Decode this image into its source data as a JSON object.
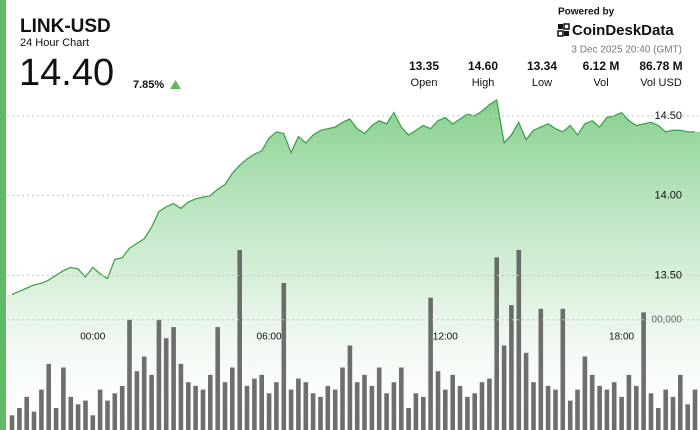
{
  "header": {
    "title": "LINK-USD",
    "subtitle": "24 Hour Chart",
    "price": "14.40",
    "change": "7.85%",
    "powered_by": "Powered by",
    "brand": "CoinDeskData",
    "timestamp": "3 Dec 2025 20:40 (GMT)"
  },
  "stats": [
    {
      "value": "13.35",
      "label": "Open"
    },
    {
      "value": "14.60",
      "label": "High"
    },
    {
      "value": "13.34",
      "label": "Low"
    },
    {
      "value": "6.12 M",
      "label": "Vol"
    },
    {
      "value": "86.78 M",
      "label": "Vol USD"
    }
  ],
  "chart_data": {
    "type": "line",
    "x": [
      -2.75,
      -2.5,
      -2.25,
      -2,
      -1.75,
      -1.5,
      -1.25,
      -1,
      -0.75,
      -0.5,
      -0.25,
      0,
      0.25,
      0.5,
      0.75,
      1,
      1.25,
      1.5,
      1.75,
      2,
      2.25,
      2.5,
      2.75,
      3,
      3.25,
      3.5,
      3.75,
      4,
      4.25,
      4.5,
      4.75,
      5,
      5.25,
      5.5,
      5.75,
      6,
      6.25,
      6.5,
      6.75,
      7,
      7.25,
      7.5,
      7.75,
      8,
      8.25,
      8.5,
      8.75,
      9,
      9.25,
      9.5,
      9.75,
      10,
      10.25,
      10.5,
      10.75,
      11,
      11.25,
      11.5,
      11.75,
      12,
      12.25,
      12.5,
      12.75,
      13,
      13.25,
      13.5,
      13.75,
      14,
      14.25,
      14.5,
      14.75,
      15,
      15.25,
      15.5,
      15.75,
      16,
      16.25,
      16.5,
      16.75,
      17,
      17.25,
      17.5,
      17.75,
      18,
      18.25,
      18.5,
      18.75,
      19,
      19.25,
      19.5,
      19.75,
      20,
      20.25,
      20.5
    ],
    "xlim": [
      -2.92,
      20.67
    ],
    "xticks": [
      {
        "value": 0,
        "label": "00:00"
      },
      {
        "value": 6,
        "label": "06:00"
      },
      {
        "value": 12,
        "label": "12:00"
      },
      {
        "value": 18,
        "label": "18:00"
      }
    ],
    "ylim": [
      12.53,
      14.65
    ],
    "yticks": [
      {
        "value": 13.5,
        "label": "13.50"
      },
      {
        "value": 14,
        "label": "14.00"
      },
      {
        "value": 14.5,
        "label": "14.50"
      }
    ],
    "y2lim": [
      0,
      920000
    ],
    "y2ticks": [
      {
        "value": 300000,
        "label": "00,000"
      }
    ],
    "grid": true,
    "series": [
      {
        "type": "line",
        "color": "#3fa34d",
        "values": [
          13.38,
          13.4,
          13.42,
          13.44,
          13.45,
          13.47,
          13.5,
          13.53,
          13.55,
          13.54,
          13.49,
          13.55,
          13.51,
          13.48,
          13.6,
          13.61,
          13.67,
          13.7,
          13.73,
          13.8,
          13.9,
          13.93,
          13.95,
          13.92,
          13.96,
          13.98,
          13.99,
          14.0,
          14.04,
          14.07,
          14.14,
          14.19,
          14.23,
          14.26,
          14.28,
          14.36,
          14.4,
          14.39,
          14.27,
          14.37,
          14.33,
          14.38,
          14.41,
          14.42,
          14.43,
          14.46,
          14.48,
          14.42,
          14.39,
          14.44,
          14.47,
          14.45,
          14.52,
          14.43,
          14.38,
          14.41,
          14.44,
          14.42,
          14.47,
          14.49,
          14.45,
          14.48,
          14.51,
          14.5,
          14.53,
          14.57,
          14.6,
          14.33,
          14.38,
          14.46,
          14.35,
          14.41,
          14.43,
          14.45,
          14.42,
          14.4,
          14.44,
          14.38,
          14.45,
          14.47,
          14.43,
          14.49,
          14.5,
          14.52,
          14.47,
          14.44,
          14.45,
          14.46,
          14.44,
          14.4,
          14.41,
          14.41,
          14.4,
          14.4
        ]
      },
      {
        "type": "bar",
        "axis": "y2",
        "color": "#555555",
        "values": [
          40000,
          60000,
          90000,
          50000,
          110000,
          180000,
          60000,
          170000,
          90000,
          70000,
          80000,
          40000,
          110000,
          80000,
          100000,
          120000,
          300000,
          160000,
          200000,
          150000,
          300000,
          250000,
          280000,
          180000,
          130000,
          120000,
          110000,
          150000,
          280000,
          130000,
          170000,
          490000,
          120000,
          140000,
          150000,
          100000,
          130000,
          400000,
          110000,
          140000,
          130000,
          100000,
          90000,
          120000,
          110000,
          170000,
          230000,
          130000,
          150000,
          120000,
          170000,
          100000,
          130000,
          170000,
          60000,
          100000,
          90000,
          360000,
          160000,
          110000,
          150000,
          120000,
          90000,
          100000,
          130000,
          140000,
          470000,
          230000,
          340000,
          490000,
          210000,
          130000,
          330000,
          120000,
          110000,
          330000,
          80000,
          110000,
          200000,
          150000,
          120000,
          110000,
          130000,
          90000,
          150000,
          120000,
          320000,
          100000,
          60000,
          110000,
          90000,
          150000,
          70000,
          110000
        ]
      }
    ]
  }
}
